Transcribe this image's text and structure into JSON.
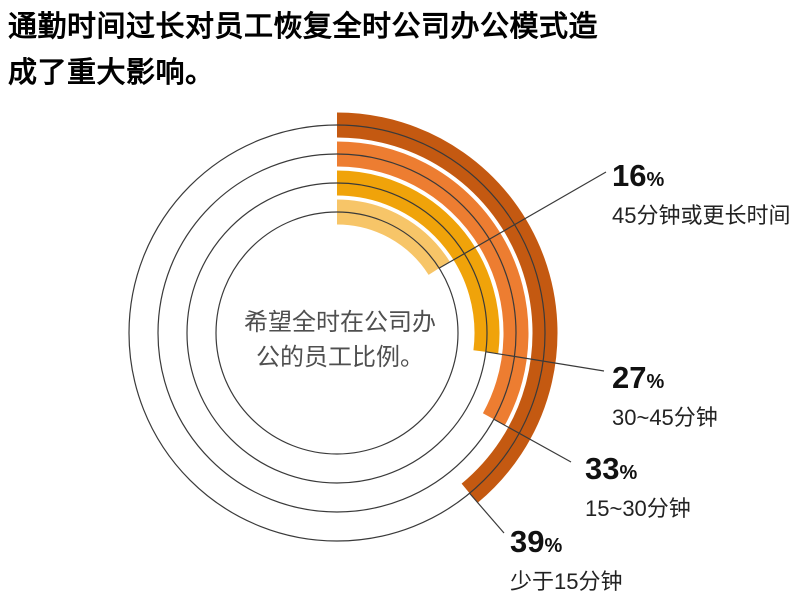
{
  "title": {
    "line1": "通勤时间过长对员工恢复全时公司办公模式造",
    "line2": "成了重大影响。"
  },
  "center_label": {
    "line1": "希望全时在公司办",
    "line2": "公的员工比例。"
  },
  "chart_data": {
    "type": "radial_bar",
    "title": "通勤时间过长对员工恢复全时公司办公模式造成了重大影响。",
    "center_text": "希望全时在公司办公的员工比例。",
    "unit": "%",
    "start_angle_deg": 0,
    "direction": "clockwise",
    "full_circle_value": 100,
    "categories": [
      "45分钟或更长时间",
      "30~45分钟",
      "15~30分钟",
      "少于15分钟"
    ],
    "values": [
      16,
      27,
      33,
      39
    ],
    "rings_inner_to_outer": [
      {
        "value": 16,
        "label": "45分钟或更长时间",
        "color": "#F7C568"
      },
      {
        "value": 27,
        "label": "30~45分钟",
        "color": "#F0A30A"
      },
      {
        "value": 33,
        "label": "15~30分钟",
        "color": "#ED7D31"
      },
      {
        "value": 39,
        "label": "少于15分钟",
        "color": "#C45911"
      }
    ],
    "outline_color": "#3A3A3A",
    "legend_position": "right-callouts",
    "grid": "off"
  }
}
